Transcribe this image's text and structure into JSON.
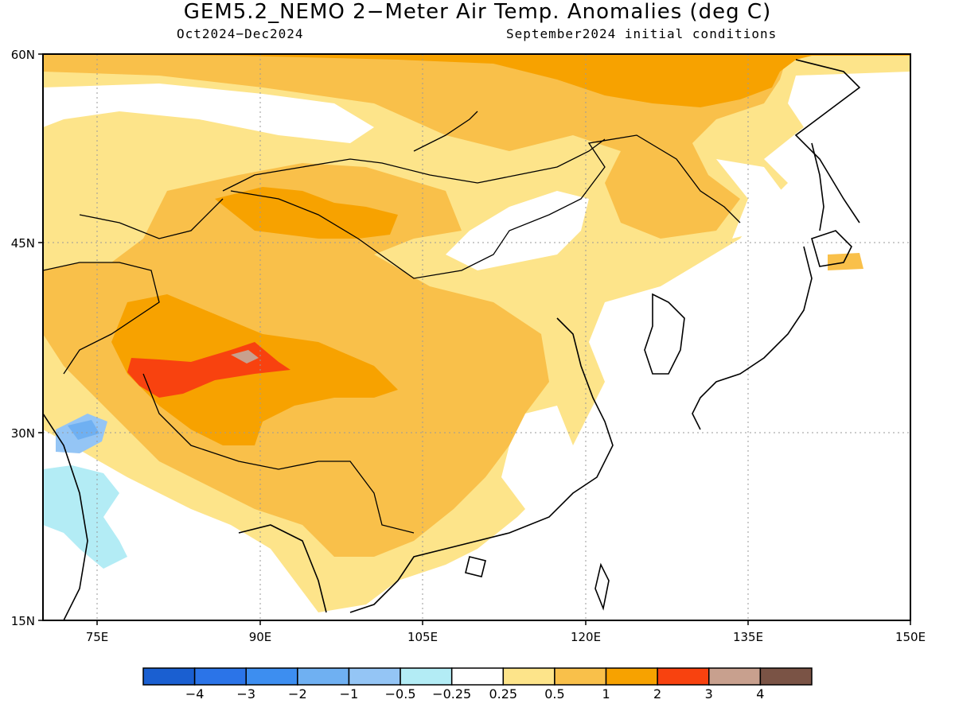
{
  "header": {
    "title": "GEM5.2_NEMO 2−Meter Air Temp. Anomalies (deg C)",
    "period": "Oct2024−Dec2024",
    "init": "September2024 initial conditions"
  },
  "map": {
    "lat_labels": [
      "60N",
      "45N",
      "30N",
      "15N"
    ],
    "lon_labels": [
      "75E",
      "90E",
      "105E",
      "120E",
      "135E",
      "150E"
    ],
    "lat_range": [
      15,
      60
    ],
    "lon_range": [
      70,
      150
    ],
    "grid": "dotted",
    "variable": "2-meter air temperature anomaly"
  },
  "legend": {
    "tick_labels": [
      "−4",
      "−3",
      "−2",
      "−1",
      "−0.5",
      "−0.25",
      "0.25",
      "0.5",
      "1",
      "2",
      "3",
      "4"
    ],
    "colors": [
      "#1a5fd1",
      "#2b74e8",
      "#3d8ef0",
      "#6fb0f2",
      "#94c5f5",
      "#b3ecf5",
      "#ffffff",
      "#fde48a",
      "#f9c04a",
      "#f7a200",
      "#f8420f",
      "#c8a08e",
      "#7a5345"
    ]
  }
}
